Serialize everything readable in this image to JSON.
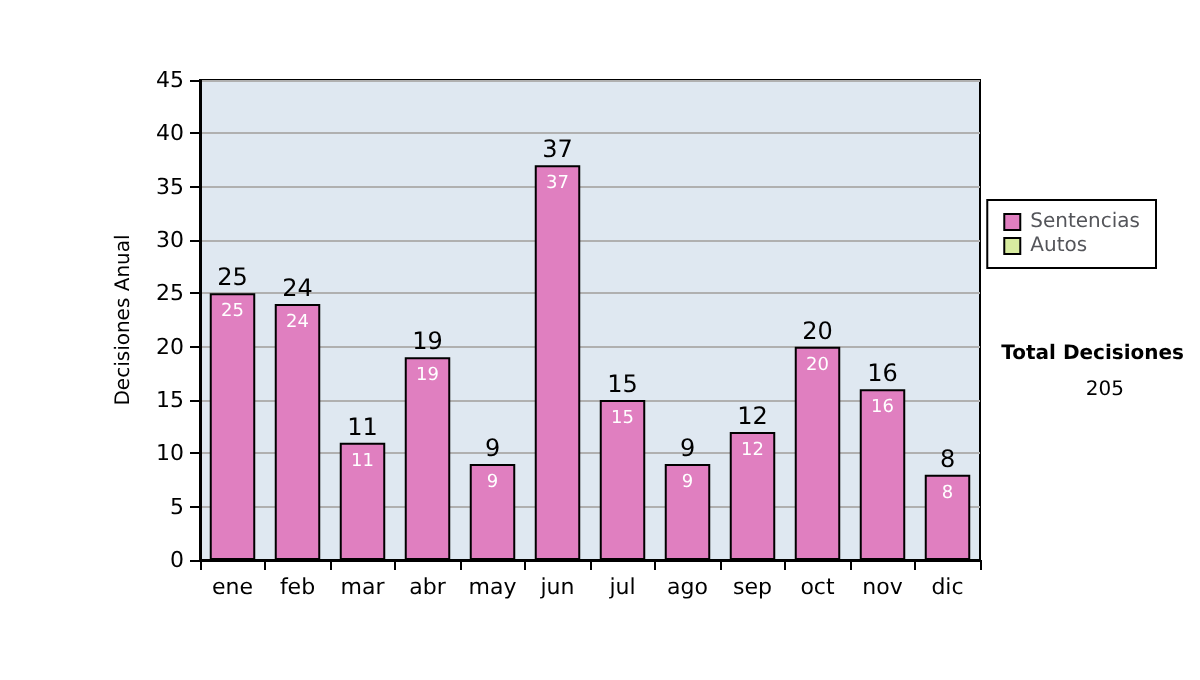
{
  "chart_data": {
    "type": "bar",
    "stacked": true,
    "ylabel": "Decisiones Anual",
    "categories": [
      "ene",
      "feb",
      "mar",
      "abr",
      "may",
      "jun",
      "jul",
      "ago",
      "sep",
      "oct",
      "nov",
      "dic"
    ],
    "series": [
      {
        "name": "Sentencias",
        "color": "#e07fc0",
        "values": [
          25,
          24,
          11,
          19,
          9,
          37,
          15,
          9,
          12,
          20,
          16,
          8
        ],
        "value_labels": [
          "25",
          "24",
          "11",
          "19",
          "9",
          "37",
          "15",
          "9",
          "12",
          "20",
          "16",
          "8"
        ]
      },
      {
        "name": "Autos",
        "color": "#d8eca0",
        "values": [
          0,
          0,
          0,
          0,
          0,
          0,
          0,
          0,
          0,
          0,
          0,
          0
        ]
      }
    ],
    "totals": [
      "25",
      "24",
      "11",
      "19",
      "9",
      "37",
      "15",
      "9",
      "12",
      "20",
      "16",
      "8"
    ],
    "ylim": [
      0,
      45
    ],
    "yticks": [
      0,
      5,
      10,
      15,
      20,
      25,
      30,
      35,
      40,
      45
    ],
    "grid": "y",
    "legend": "right",
    "annotations": [
      "Total Decisiones",
      "205"
    ]
  }
}
